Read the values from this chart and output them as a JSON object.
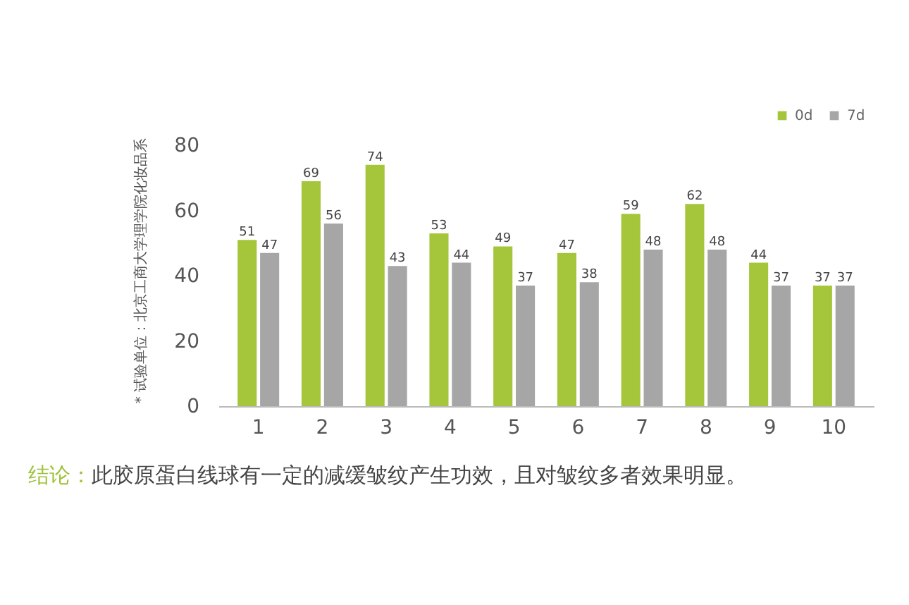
{
  "chart_data": {
    "type": "bar",
    "categories": [
      "1",
      "2",
      "3",
      "4",
      "5",
      "6",
      "7",
      "8",
      "9",
      "10"
    ],
    "series": [
      {
        "name": "0d",
        "color": "#a5c63b",
        "values": [
          51,
          69,
          74,
          53,
          49,
          47,
          59,
          62,
          44,
          37
        ]
      },
      {
        "name": "7d",
        "color": "#a6a6a6",
        "values": [
          47,
          56,
          43,
          44,
          37,
          38,
          48,
          48,
          37,
          37
        ]
      }
    ],
    "ylim": [
      0,
      80
    ],
    "yticks": [
      0,
      20,
      40,
      60,
      80
    ],
    "data_labels": true,
    "legend": "top right",
    "annotations": [
      "* 试验单位：北京工商大学理学院化妆品系",
      "结论：",
      "此胶原蛋白线球有一定的减缓皱纹产生功效，且对皱纹多者效果明显。"
    ]
  }
}
